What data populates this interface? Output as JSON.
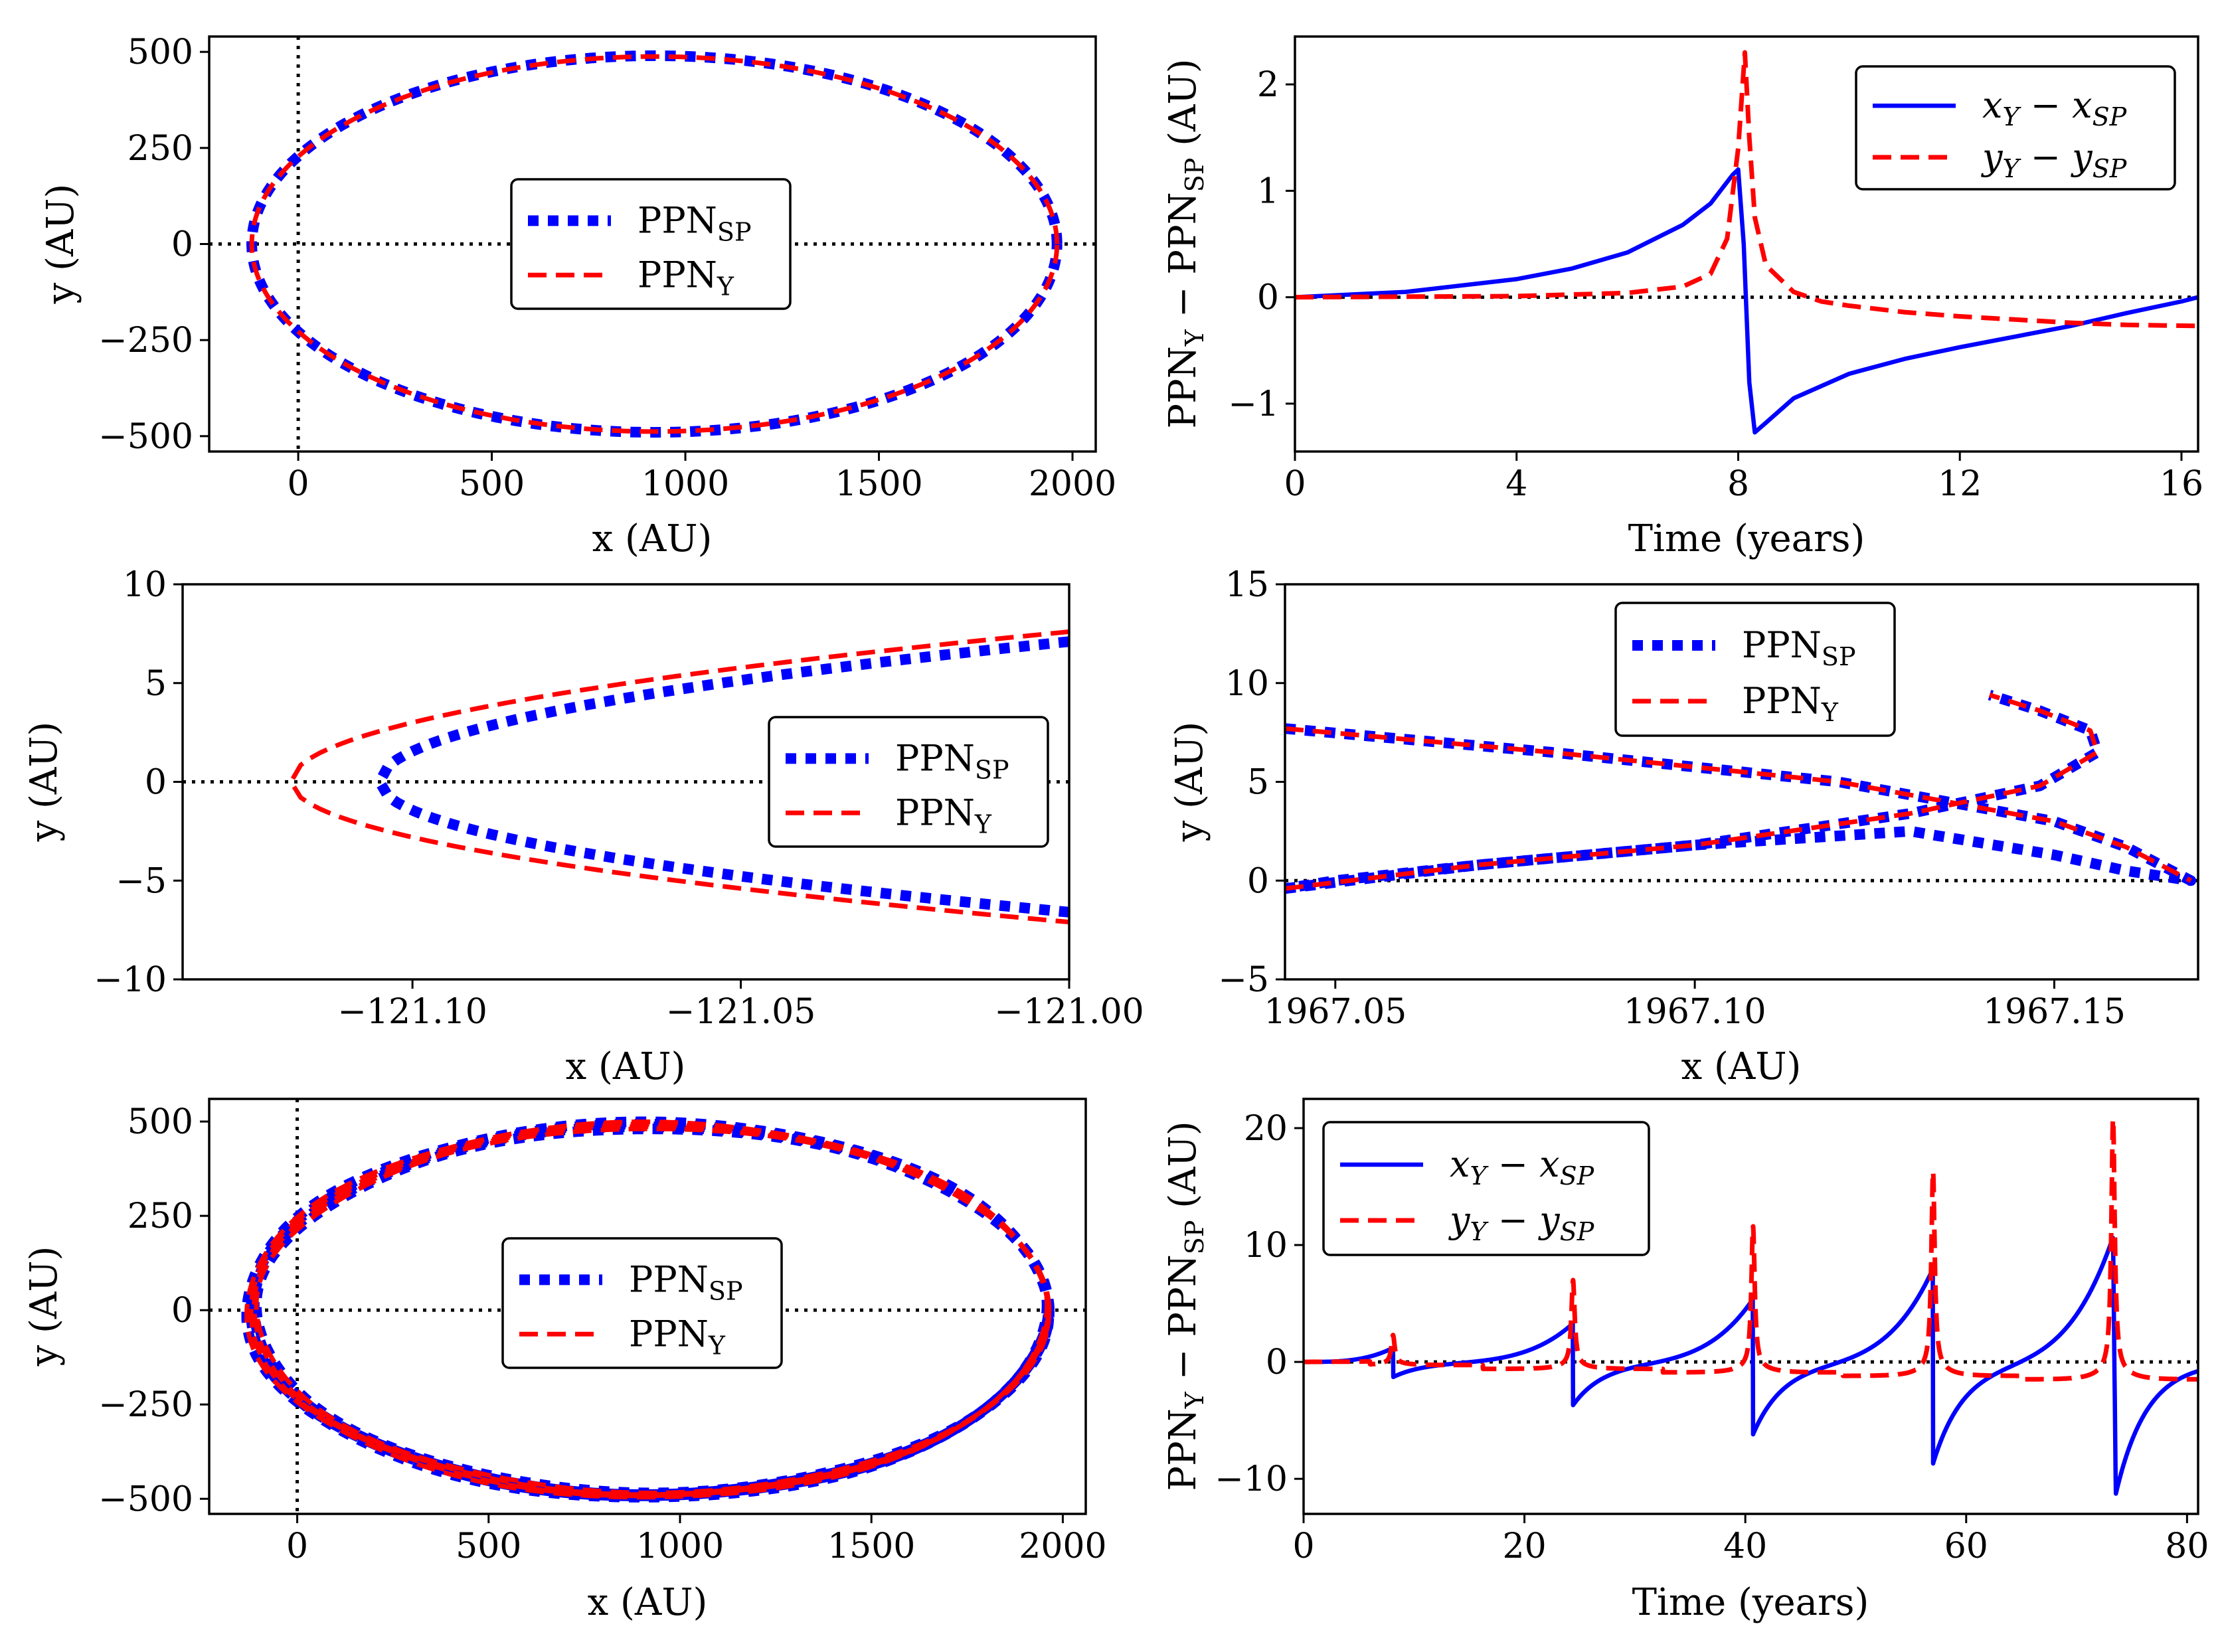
{
  "figure": {
    "colors": {
      "blue": "#0000ff",
      "red": "#ff0000",
      "axis": "#000000",
      "ref": "#000000"
    }
  },
  "chart_data": [
    {
      "id": "orbit-top",
      "type": "line",
      "xlabel": "x (AU)",
      "ylabel": "y (AU)",
      "xlim": [
        -230,
        2060
      ],
      "ylim": [
        -540,
        540
      ],
      "xticks": [
        0,
        500,
        1000,
        1500,
        2000
      ],
      "xtick_labels": [
        "0",
        "500",
        "1000",
        "1500",
        "2000"
      ],
      "yticks": [
        -500,
        -250,
        0,
        250,
        500
      ],
      "ytick_labels": [
        "−500",
        "−250",
        "0",
        "250",
        "500"
      ],
      "ref_lines": {
        "y0": true,
        "x0": true
      },
      "legend": {
        "placement": "center",
        "entries": [
          {
            "base": "PPN",
            "sub": "SP",
            "style": "dotted",
            "color": "#0000ff"
          },
          {
            "base": "PPN",
            "sub": "Y",
            "style": "dashed",
            "color": "#ff0000"
          }
        ]
      },
      "series": [
        {
          "name": "PPN_SP",
          "kind": "ellipse",
          "center": [
            920,
            0
          ],
          "a": 1040,
          "b": 490,
          "style": "dotted",
          "color": "#0000ff"
        },
        {
          "name": "PPN_Y",
          "kind": "ellipse",
          "center": [
            920,
            0
          ],
          "a": 1040,
          "b": 488,
          "style": "dashed",
          "color": "#ff0000"
        }
      ]
    },
    {
      "id": "diff-top",
      "type": "line",
      "xlabel": "Time (years)",
      "ylabel": {
        "parts": [
          "PPN",
          "Y",
          " − PPN",
          "SP",
          " (AU)"
        ]
      },
      "xlim": [
        0,
        16.3
      ],
      "ylim": [
        -1.45,
        2.45
      ],
      "xticks": [
        0,
        4,
        8,
        12,
        16
      ],
      "xtick_labels": [
        "0",
        "4",
        "8",
        "12",
        "16"
      ],
      "yticks": [
        -1,
        0,
        1,
        2
      ],
      "ytick_labels": [
        "−1",
        "0",
        "1",
        "2"
      ],
      "ref_lines": {
        "y0": true
      },
      "legend": {
        "placement": "top-right",
        "entries": [
          {
            "text_main": "x",
            "sub1": "Y",
            "mid": " − x",
            "sub2": "SP",
            "style": "solid",
            "color": "#0000ff"
          },
          {
            "text_main": "y",
            "sub1": "Y",
            "mid": " − y",
            "sub2": "SP",
            "style": "dashed",
            "color": "#ff0000"
          }
        ]
      },
      "series": [
        {
          "name": "x_Y - x_SP",
          "style": "solid",
          "color": "#0000ff",
          "x": [
            0,
            2,
            4,
            5,
            6,
            7,
            7.5,
            7.9,
            8.0,
            8.1,
            8.2,
            8.3,
            8.5,
            9,
            10,
            11,
            12,
            13,
            14,
            15,
            16,
            16.3
          ],
          "y": [
            0,
            0.05,
            0.17,
            0.27,
            0.42,
            0.68,
            0.88,
            1.15,
            1.2,
            0.5,
            -0.8,
            -1.27,
            -1.18,
            -0.95,
            -0.72,
            -0.58,
            -0.47,
            -0.37,
            -0.27,
            -0.15,
            -0.04,
            0
          ]
        },
        {
          "name": "y_Y - y_SP",
          "style": "dashed",
          "color": "#ff0000",
          "x": [
            0,
            4,
            6,
            7,
            7.5,
            7.8,
            8.0,
            8.12,
            8.2,
            8.3,
            8.5,
            9,
            9.5,
            10,
            11,
            12,
            13,
            14,
            15,
            16.3
          ],
          "y": [
            0,
            0.01,
            0.04,
            0.1,
            0.22,
            0.55,
            1.4,
            2.3,
            1.5,
            0.75,
            0.3,
            0.05,
            -0.04,
            -0.08,
            -0.14,
            -0.18,
            -0.21,
            -0.24,
            -0.26,
            -0.27
          ]
        }
      ]
    },
    {
      "id": "zoom-left",
      "type": "line",
      "xlabel": "x (AU)",
      "ylabel": "y (AU)",
      "xlim": [
        -121.135,
        -121.0
      ],
      "ylim": [
        -10,
        10
      ],
      "xticks": [
        -121.1,
        -121.05,
        -121.0
      ],
      "xtick_labels": [
        "−121.10",
        "−121.05",
        "−121.00"
      ],
      "yticks": [
        -10,
        -5,
        0,
        5,
        10
      ],
      "ytick_labels": [
        "−10",
        "−5",
        "0",
        "5",
        "10"
      ],
      "ref_lines": {
        "y0": true
      },
      "legend": {
        "placement": "center-right",
        "entries": [
          {
            "base": "PPN",
            "sub": "SP",
            "style": "dotted",
            "color": "#0000ff"
          },
          {
            "base": "PPN",
            "sub": "Y",
            "style": "dashed",
            "color": "#ff0000"
          }
        ]
      },
      "series": [
        {
          "name": "PPN_SP",
          "kind": "parabola",
          "vertex": -121.105,
          "tip": -121.0,
          "end_y_top": 7.1,
          "end_y_bot": -6.6,
          "style": "dotted",
          "color": "#0000ff"
        },
        {
          "name": "PPN_Y",
          "kind": "parabola",
          "vertex": -121.1185,
          "tip": -121.0,
          "end_y_top": 7.6,
          "end_y_bot": -7.1,
          "style": "dashed",
          "color": "#ff0000"
        }
      ]
    },
    {
      "id": "zoom-right",
      "type": "line",
      "xlabel": "x (AU)",
      "ylabel": "y (AU)",
      "xlim": [
        1967.043,
        1967.17
      ],
      "ylim": [
        -5,
        15
      ],
      "xticks": [
        1967.05,
        1967.1,
        1967.15
      ],
      "xtick_labels": [
        "1967.05",
        "1967.10",
        "1967.15"
      ],
      "yticks": [
        -5,
        0,
        5,
        10,
        15
      ],
      "ytick_labels": [
        "−5",
        "0",
        "5",
        "10",
        "15"
      ],
      "ref_lines": {
        "y0": true
      },
      "legend": {
        "placement": "top-center",
        "entries": [
          {
            "base": "PPN",
            "sub": "SP",
            "style": "dotted",
            "color": "#0000ff"
          },
          {
            "base": "PPN",
            "sub": "Y",
            "style": "dashed",
            "color": "#ff0000"
          }
        ]
      },
      "series": [
        {
          "name": "PPN_SP",
          "style": "dotted",
          "color": "#0000ff",
          "x": [
            1967.043,
            1967.08,
            1967.12,
            1967.15,
            1967.16,
            1967.169,
            1967.16,
            1967.15,
            1967.13,
            1967.1,
            1967.07,
            1967.05,
            1967.043
          ],
          "y": [
            7.7,
            6.5,
            5.0,
            3.0,
            1.7,
            0.0,
            0.5,
            1.3,
            2.5,
            1.8,
            0.8,
            0.0,
            -0.4
          ]
        },
        {
          "name": "PPN_Y",
          "style": "dashed",
          "color": "#ff0000",
          "x": [
            1967.043,
            1967.08,
            1967.12,
            1967.15,
            1967.16,
            1967.169
          ],
          "y": [
            7.7,
            6.5,
            5.0,
            3.0,
            1.7,
            0.0
          ]
        },
        {
          "name": "PPN_SP_loop",
          "style": "dotted",
          "color": "#0000ff",
          "x": [
            1967.043,
            1967.07,
            1967.1,
            1967.13,
            1967.148,
            1967.156,
            1967.155,
            1967.148,
            1967.141
          ],
          "y": [
            -0.4,
            0.8,
            1.8,
            3.4,
            4.8,
            6.5,
            7.6,
            8.6,
            9.4
          ]
        },
        {
          "name": "PPN_Y_loop",
          "style": "dashed",
          "color": "#ff0000",
          "x": [
            1967.043,
            1967.07,
            1967.1,
            1967.13,
            1967.148,
            1967.156,
            1967.155,
            1967.148,
            1967.141
          ],
          "y": [
            -0.4,
            0.8,
            1.8,
            3.4,
            4.8,
            6.5,
            7.6,
            8.6,
            9.4
          ]
        }
      ]
    },
    {
      "id": "orbit-bottom",
      "type": "line",
      "xlabel": "x (AU)",
      "ylabel": "y (AU)",
      "xlim": [
        -230,
        2060
      ],
      "ylim": [
        -540,
        560
      ],
      "xticks": [
        0,
        500,
        1000,
        1500,
        2000
      ],
      "xtick_labels": [
        "0",
        "500",
        "1000",
        "1500",
        "2000"
      ],
      "yticks": [
        -500,
        -250,
        0,
        250,
        500
      ],
      "ytick_labels": [
        "−500",
        "−250",
        "0",
        "250",
        "500"
      ],
      "ref_lines": {
        "y0": true,
        "x0": true
      },
      "legend": {
        "placement": "center",
        "entries": [
          {
            "base": "PPN",
            "sub": "SP",
            "style": "dotted",
            "color": "#0000ff"
          },
          {
            "base": "PPN",
            "sub": "Y",
            "style": "dashed",
            "color": "#ff0000"
          }
        ]
      },
      "series": [
        {
          "name": "PPN_SP",
          "kind": "ellipse-band",
          "center": [
            920,
            0
          ],
          "a": 1040,
          "b": 490,
          "style": "dotted",
          "color": "#0000ff"
        },
        {
          "name": "PPN_Y",
          "kind": "ellipse-band",
          "center": [
            920,
            0
          ],
          "a": 1040,
          "b": 490,
          "style": "dashed",
          "color": "#ff0000"
        }
      ]
    },
    {
      "id": "diff-bottom",
      "type": "line",
      "xlabel": "Time (years)",
      "ylabel": {
        "parts": [
          "PPN",
          "Y",
          " − PPN",
          "SP",
          " (AU)"
        ]
      },
      "xlim": [
        0,
        81
      ],
      "ylim": [
        -13,
        22.5
      ],
      "xticks": [
        0,
        20,
        40,
        60,
        80
      ],
      "xtick_labels": [
        "0",
        "20",
        "40",
        "60",
        "80"
      ],
      "yticks": [
        -10,
        0,
        10,
        20
      ],
      "ytick_labels": [
        "−10",
        "0",
        "10",
        "20"
      ],
      "ref_lines": {
        "y0": true
      },
      "legend": {
        "placement": "top-left",
        "entries": [
          {
            "text_main": "x",
            "sub1": "Y",
            "mid": " − x",
            "sub2": "SP",
            "style": "solid",
            "color": "#0000ff"
          },
          {
            "text_main": "y",
            "sub1": "Y",
            "mid": " − y",
            "sub2": "SP",
            "style": "dashed",
            "color": "#ff0000"
          }
        ]
      },
      "periodic": {
        "period": 16.3,
        "peak_times": [
          8.1,
          24.4,
          40.7,
          57.0,
          73.3
        ],
        "x_peaks": [
          1.2,
          3.3,
          5.4,
          8.0,
          10.7
        ],
        "x_troughs": [
          -1.3,
          -3.7,
          -6.2,
          -8.7,
          -11.3
        ],
        "y_peaks": [
          2.3,
          7.0,
          11.6,
          16.3,
          20.8
        ],
        "y_floor": [
          -0.27,
          -0.6,
          -0.9,
          -1.2,
          -1.5
        ]
      }
    }
  ]
}
